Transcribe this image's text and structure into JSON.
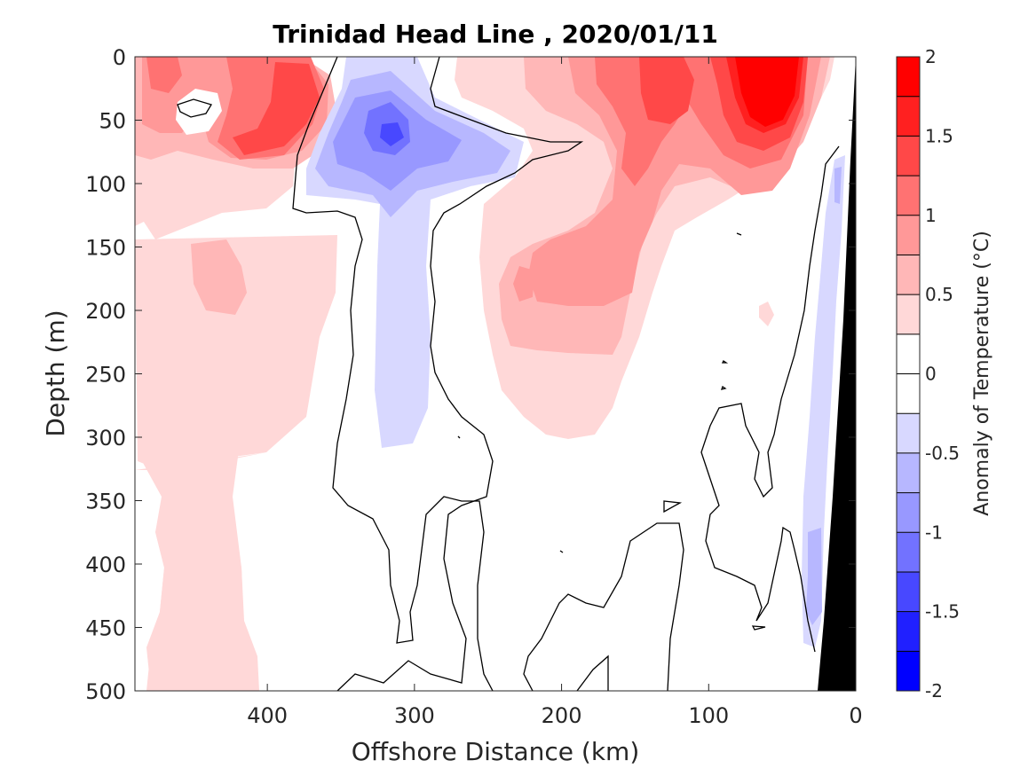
{
  "chart_data": {
    "type": "heatmap",
    "title": "Trinidad Head Line , 2020/01/11",
    "xlabel": "Offshore Distance (km)",
    "ylabel": "Depth (m)",
    "xlim": [
      490,
      0
    ],
    "ylim": [
      0,
      500
    ],
    "x_ticks": [
      "400",
      "300",
      "200",
      "100",
      "0"
    ],
    "y_ticks": [
      "0",
      "50",
      "100",
      "150",
      "200",
      "250",
      "300",
      "350",
      "400",
      "450",
      "500"
    ],
    "colorbar": {
      "label": "Anomaly of Temperature (°C)",
      "range": [
        -2,
        2
      ],
      "step": 0.25,
      "ticks": [
        "2",
        "1.5",
        "1",
        "0.5",
        "0",
        "-0.5",
        "-1",
        "-1.5",
        "-2"
      ],
      "colors": [
        "#0000ff",
        "#2020ff",
        "#4848ff",
        "#7272ff",
        "#9898ff",
        "#b7b7ff",
        "#d8d8ff",
        "#ffffff",
        "#ffffff",
        "#ffd8d8",
        "#ffb7b7",
        "#ff9898",
        "#ff7272",
        "#ff4848",
        "#ff2020",
        "#ff0000"
      ]
    },
    "features": [
      {
        "label": "warm anomaly core",
        "x": 60,
        "depth": 40,
        "value": 1.9
      },
      {
        "label": "warm anomaly",
        "x": 130,
        "depth": 30,
        "value": 1.3
      },
      {
        "label": "warm anomaly",
        "x": 380,
        "depth": 30,
        "value": 1.2
      },
      {
        "label": "warm anomaly",
        "x": 420,
        "depth": 75,
        "value": 1.0
      },
      {
        "label": "cold anomaly core",
        "x": 315,
        "depth": 60,
        "value": -1.0
      },
      {
        "label": "cold anomaly (nearshore)",
        "x": 25,
        "depth": 300,
        "value": -0.4
      }
    ],
    "bathymetry": "black wedge along the coast, reaching from 0 km at the surface to about 25 km at 500 m"
  }
}
